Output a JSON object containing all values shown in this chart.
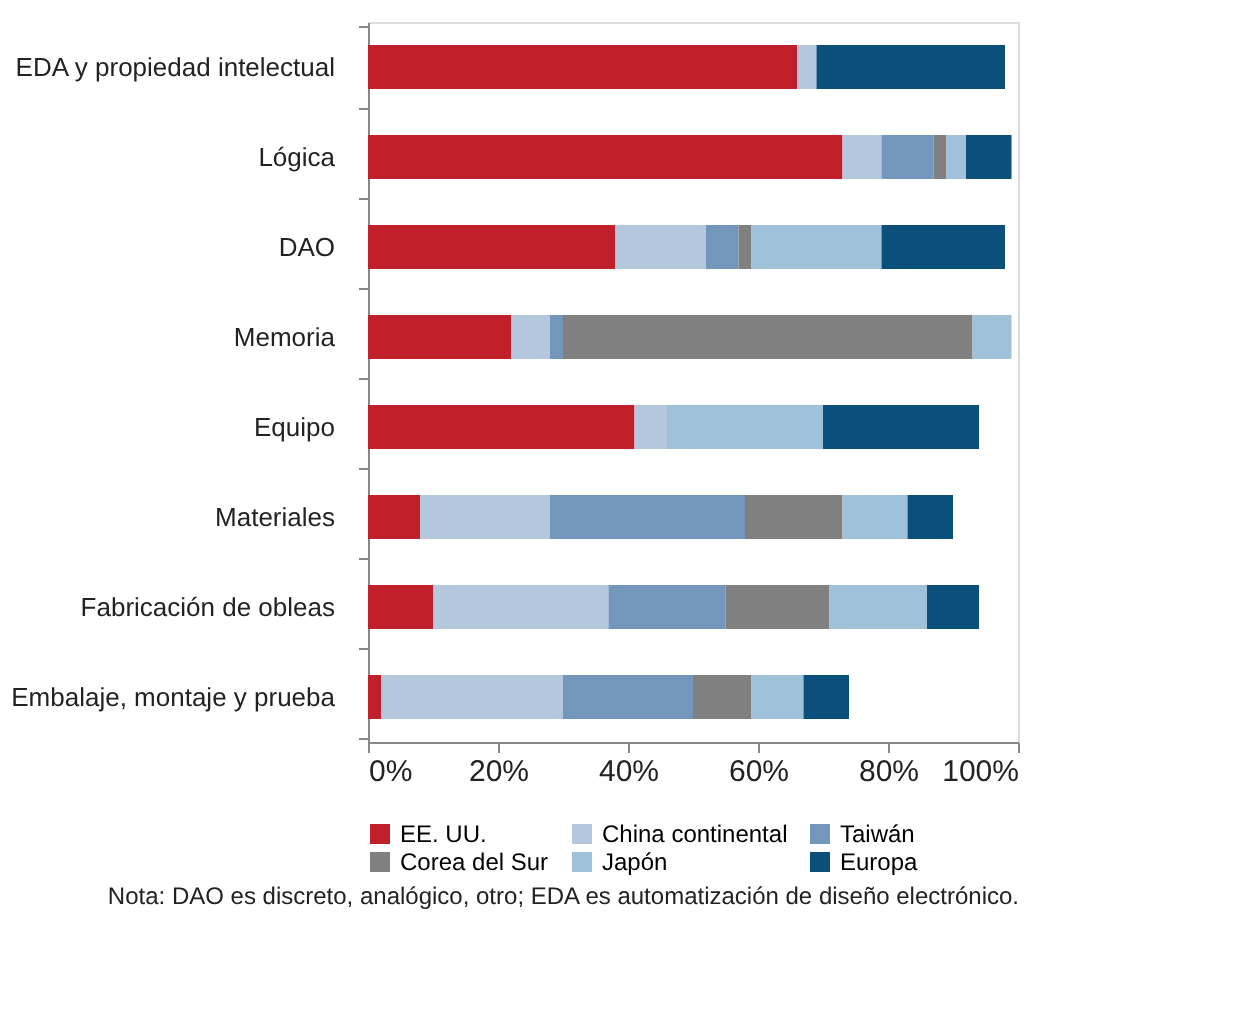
{
  "chart_data": {
    "type": "bar",
    "orientation": "horizontal",
    "stacked": true,
    "categories": [
      "EDA y propiedad intelectual",
      "Lógica",
      "DAO",
      "Memoria",
      "Equipo",
      "Materiales",
      "Fabricación de obleas",
      "Embalaje, montaje y prueba"
    ],
    "series": [
      {
        "name": "EE. UU.",
        "color": "#c0202a",
        "values": [
          66,
          73,
          38,
          22,
          41,
          8,
          10,
          2
        ]
      },
      {
        "name": "China continental",
        "color": "#b4c7dc",
        "values": [
          3,
          6,
          14,
          6,
          5,
          20,
          27,
          28
        ]
      },
      {
        "name": "Taiwán",
        "color": "#7396bb",
        "values": [
          0,
          8,
          5,
          2,
          0,
          30,
          18,
          20
        ]
      },
      {
        "name": "Corea del Sur",
        "color": "#808080",
        "values": [
          0,
          2,
          2,
          63,
          0,
          15,
          16,
          9
        ]
      },
      {
        "name": "Japón",
        "color": "#9fc1d9",
        "values": [
          0,
          3,
          20,
          6,
          24,
          10,
          15,
          8
        ]
      },
      {
        "name": "Europa",
        "color": "#0b4f7c",
        "values": [
          29,
          7,
          19,
          0,
          24,
          7,
          8,
          7
        ]
      }
    ],
    "xlim": [
      0,
      100
    ],
    "xticks": [
      {
        "value": 0,
        "label": "0%"
      },
      {
        "value": 20,
        "label": "20%"
      },
      {
        "value": 40,
        "label": "40%"
      },
      {
        "value": 60,
        "label": "60%"
      },
      {
        "value": 80,
        "label": "80%"
      },
      {
        "value": 100,
        "label": "100%"
      }
    ],
    "legend": "bottom",
    "grid": false,
    "annotations": [
      "Nota: DAO es discreto, analógico, otro; EDA es automatización de diseño electrónico."
    ]
  }
}
